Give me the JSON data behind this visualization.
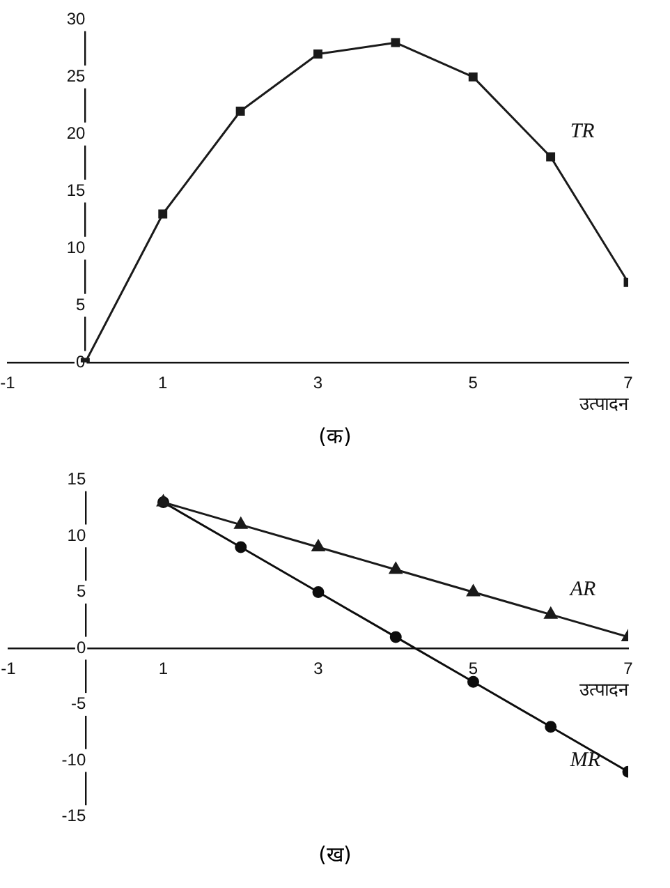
{
  "chart_data": [
    {
      "type": "line",
      "xlabel": "उत्पादन",
      "annotations": [
        "(क)"
      ],
      "x": [
        0,
        1,
        2,
        3,
        4,
        5,
        6,
        7
      ],
      "xlim": [
        -1,
        7
      ],
      "xticks": [
        -1,
        1,
        3,
        5,
        7
      ],
      "ylim": [
        0,
        30
      ],
      "yticks": [
        0,
        5,
        10,
        15,
        20,
        25,
        30
      ],
      "grid": false,
      "legend": false,
      "series": [
        {
          "name": "TR",
          "color": "#1a1a1a",
          "marker": "square",
          "values": [
            0,
            13,
            22,
            27,
            28,
            25,
            18,
            7
          ]
        }
      ]
    },
    {
      "type": "line",
      "xlabel": "उत्पादन",
      "annotations": [
        "(ख)"
      ],
      "x": [
        1,
        2,
        3,
        4,
        5,
        6,
        7
      ],
      "xlim": [
        -1,
        7
      ],
      "xticks": [
        -1,
        1,
        3,
        5,
        7
      ],
      "ylim": [
        -15,
        15
      ],
      "yticks": [
        -15,
        -10,
        -5,
        0,
        5,
        10,
        15
      ],
      "grid": false,
      "legend": false,
      "series": [
        {
          "name": "AR",
          "color": "#1a1a1a",
          "marker": "triangle",
          "values": [
            13,
            11,
            9,
            7,
            5,
            3,
            1
          ]
        },
        {
          "name": "MR",
          "color": "#0d0d0d",
          "marker": "circle",
          "values": [
            13,
            9,
            5,
            1,
            -3,
            -7,
            -11
          ]
        }
      ]
    }
  ]
}
